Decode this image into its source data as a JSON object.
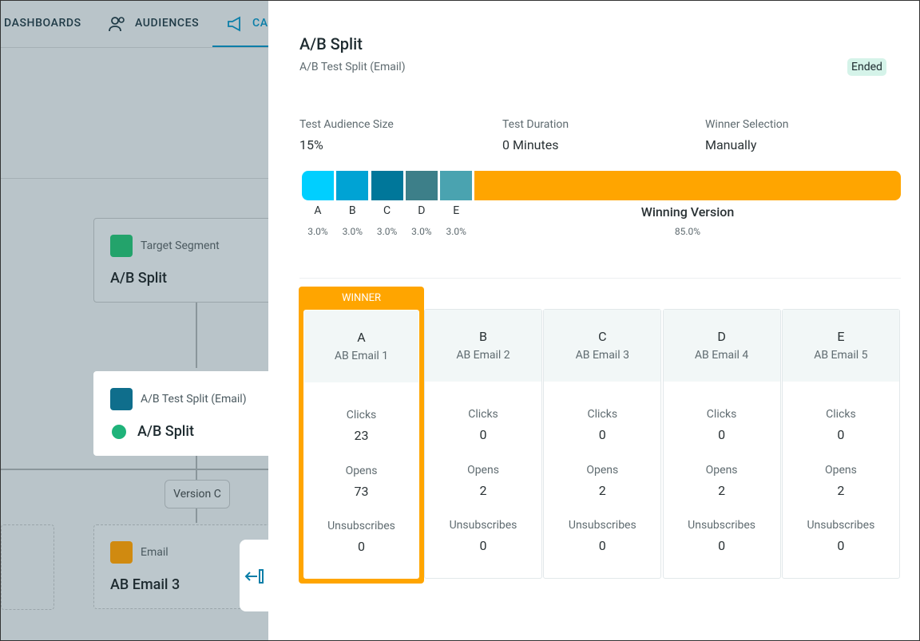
{
  "nav": {
    "items": [
      "DASHBOARDS",
      "AUDIENCES",
      "CA"
    ]
  },
  "flow": {
    "target_node": {
      "type": "Target Segment",
      "name": "A/B Split"
    },
    "split_node": {
      "type": "A/B Test Split (Email)",
      "name": "A/B Split"
    },
    "branch_label": "Version C",
    "email_node": {
      "type": "Email",
      "name": "AB Email 3"
    }
  },
  "panel": {
    "title": "A/B Split",
    "subtitle": "A/B Test Split (Email)",
    "status": "Ended",
    "stats": [
      {
        "label": "Test Audience Size",
        "value": "15%"
      },
      {
        "label": "Test Duration",
        "value": "0 Minutes"
      },
      {
        "label": "Winner Selection",
        "value": "Manually"
      }
    ],
    "split": [
      {
        "label": "A",
        "share": "3.0%"
      },
      {
        "label": "B",
        "share": "3.0%"
      },
      {
        "label": "C",
        "share": "3.0%"
      },
      {
        "label": "D",
        "share": "3.0%"
      },
      {
        "label": "E",
        "share": "3.0%"
      },
      {
        "label": "Winning Version",
        "share": "85.0%"
      }
    ],
    "winner_badge": "WINNER",
    "metric_labels": [
      "Clicks",
      "Opens",
      "Unsubscribes"
    ],
    "versions": [
      {
        "letter": "A",
        "email": "AB Email 1",
        "metrics": [
          23,
          73,
          0
        ]
      },
      {
        "letter": "B",
        "email": "AB Email 2",
        "metrics": [
          0,
          2,
          0
        ]
      },
      {
        "letter": "C",
        "email": "AB Email 3",
        "metrics": [
          0,
          2,
          0
        ]
      },
      {
        "letter": "D",
        "email": "AB Email 4",
        "metrics": [
          0,
          2,
          0
        ]
      },
      {
        "letter": "E",
        "email": "AB Email 5",
        "metrics": [
          0,
          2,
          0
        ]
      }
    ]
  }
}
